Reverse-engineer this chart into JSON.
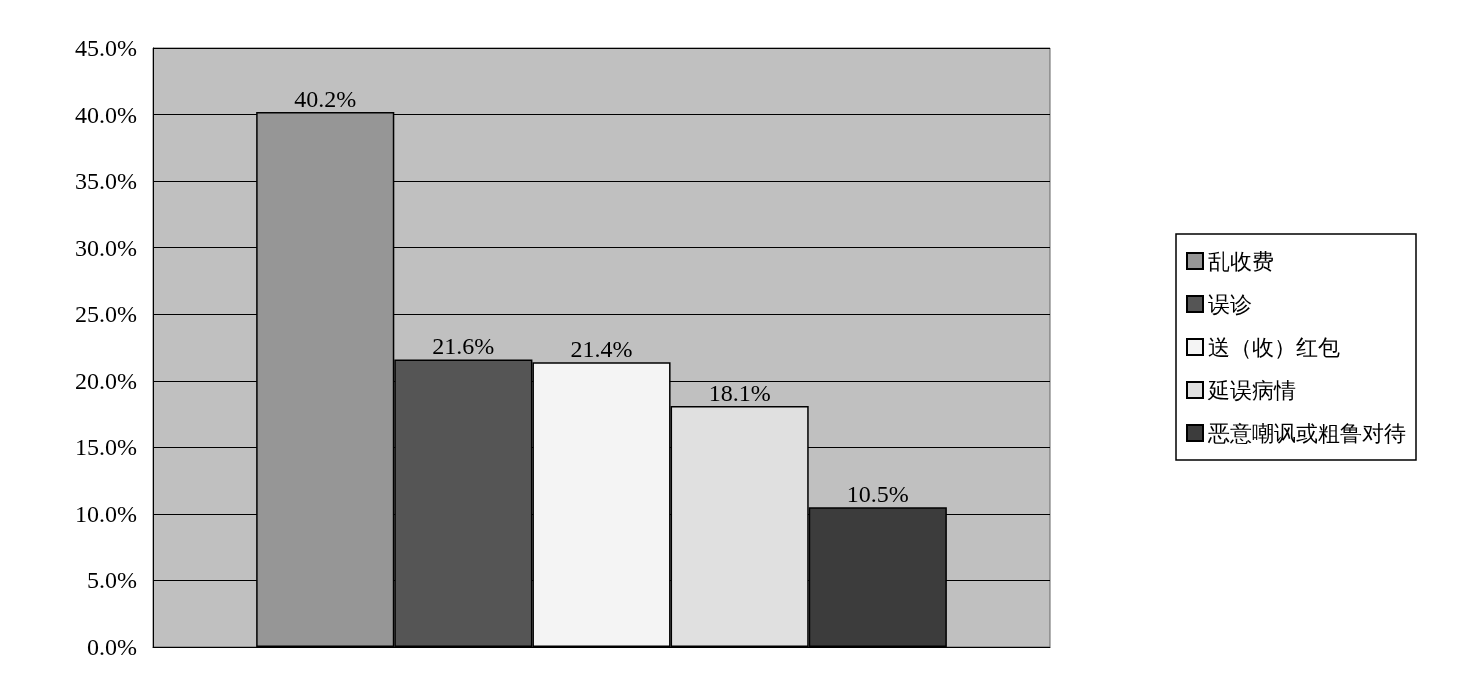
{
  "chart_data": {
    "type": "bar",
    "categories": [
      null
    ],
    "series": [
      {
        "name": "乱收费",
        "color": "#969696",
        "values": [
          40.2
        ],
        "value_labels": [
          "40.2%"
        ]
      },
      {
        "name": "误诊",
        "color": "#555555",
        "values": [
          21.6
        ],
        "value_labels": [
          "21.6%"
        ]
      },
      {
        "name": "送（收）红包",
        "color": "#f4f4f4",
        "values": [
          21.4
        ],
        "value_labels": [
          "21.4%"
        ]
      },
      {
        "name": "延误病情",
        "color": "#e0e0e0",
        "values": [
          18.1
        ],
        "value_labels": [
          "18.1%"
        ]
      },
      {
        "name": "恶意嘲讽或粗鲁对待",
        "color": "#3c3c3c",
        "values": [
          10.5
        ],
        "value_labels": [
          "10.5%"
        ]
      }
    ],
    "ylim": [
      0,
      45
    ],
    "yticks": [
      {
        "value": 0,
        "label": "0.0%"
      },
      {
        "value": 5,
        "label": "5.0%"
      },
      {
        "value": 10,
        "label": "10.0%"
      },
      {
        "value": 15,
        "label": "15.0%"
      },
      {
        "value": 20,
        "label": "20.0%"
      },
      {
        "value": 25,
        "label": "25.0%"
      },
      {
        "value": 30,
        "label": "30.0%"
      },
      {
        "value": 35,
        "label": "35.0%"
      },
      {
        "value": 40,
        "label": "40.0%"
      },
      {
        "value": 45,
        "label": "45.0%"
      }
    ],
    "grid": "y",
    "legend": "right"
  }
}
